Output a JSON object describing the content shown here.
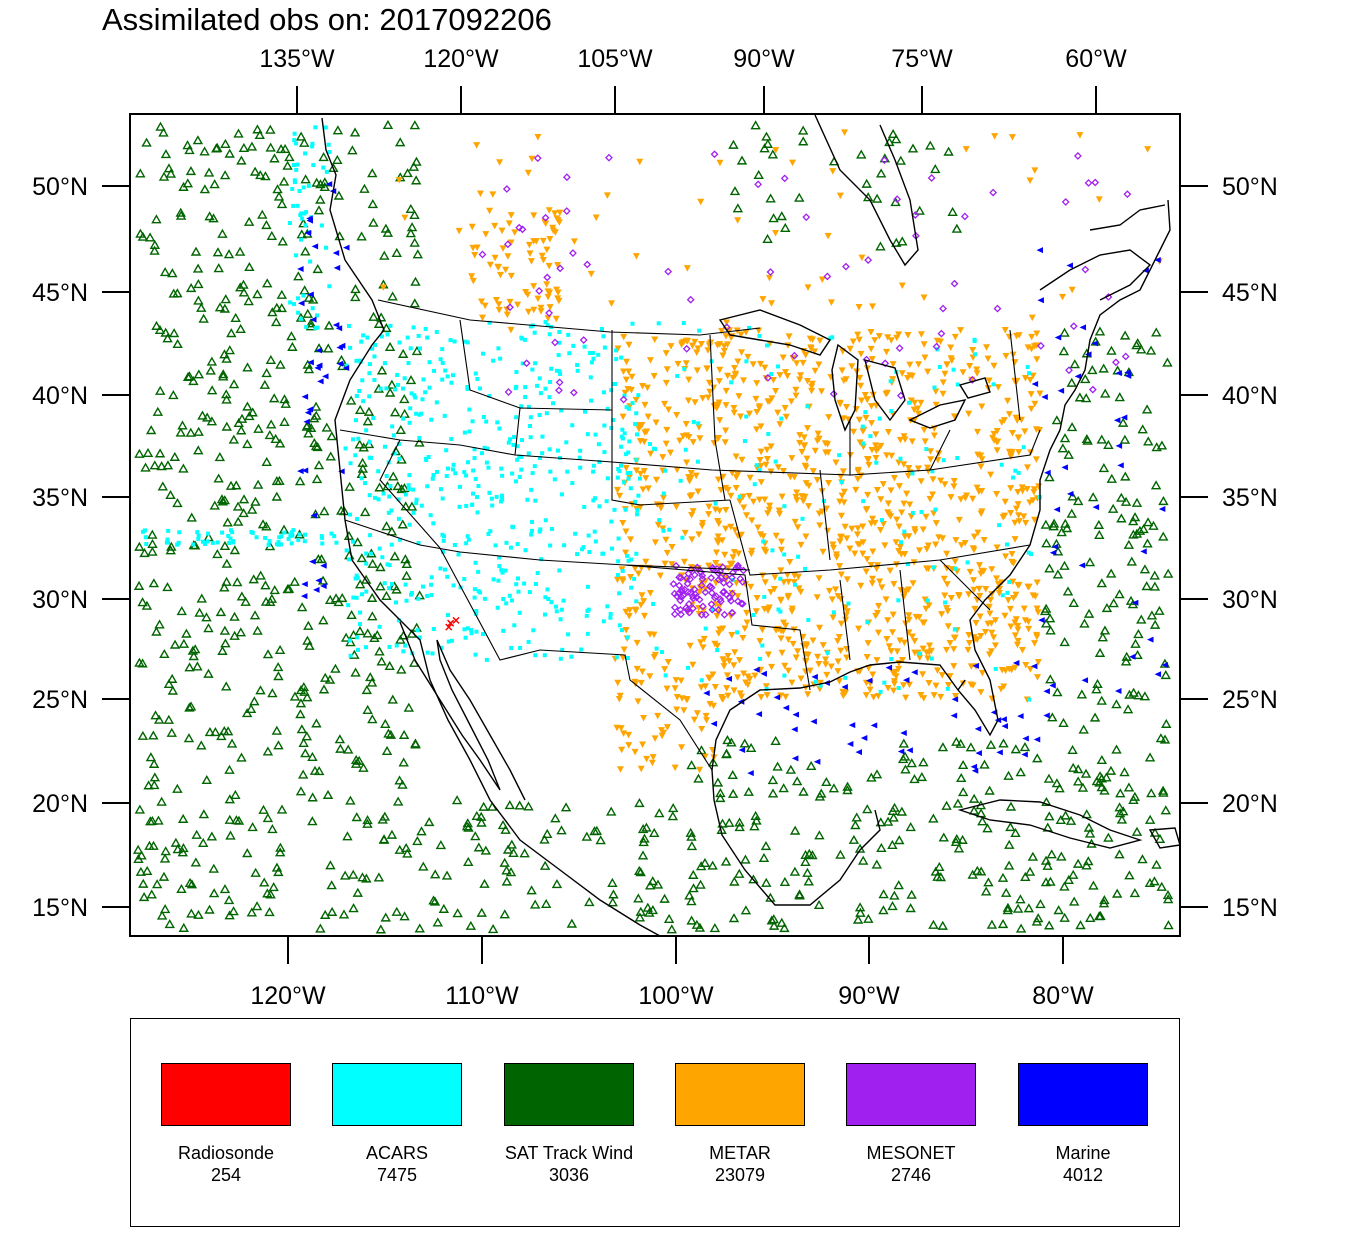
{
  "title": "Assimilated obs on: 2017092206",
  "top_axis_labels": [
    "135°W",
    "120°W",
    "105°W",
    "90°W",
    "75°W",
    "60°W"
  ],
  "bottom_axis_labels": [
    "120°W",
    "110°W",
    "100°W",
    "90°W",
    "80°W"
  ],
  "left_axis_labels": [
    "50°N",
    "45°N",
    "40°N",
    "35°N",
    "30°N",
    "25°N",
    "20°N",
    "15°N"
  ],
  "right_axis_labels": [
    "50°N",
    "45°N",
    "40°N",
    "35°N",
    "30°N",
    "25°N",
    "20°N",
    "15°N"
  ],
  "legend": [
    {
      "name": "Radiosonde",
      "count": "254",
      "color": "#ff0000",
      "marker": "cross"
    },
    {
      "name": "ACARS",
      "count": "7475",
      "color": "#00ffff",
      "marker": "square"
    },
    {
      "name": "SAT Track Wind",
      "count": "3036",
      "color": "#006400",
      "marker": "triangle-up"
    },
    {
      "name": "METAR",
      "count": "23079",
      "color": "#ffa500",
      "marker": "triangle-down"
    },
    {
      "name": "MESONET",
      "count": "2746",
      "color": "#a020f0",
      "marker": "diamond"
    },
    {
      "name": "Marine",
      "count": "4012",
      "color": "#0000ff",
      "marker": "triangle-left"
    }
  ]
}
